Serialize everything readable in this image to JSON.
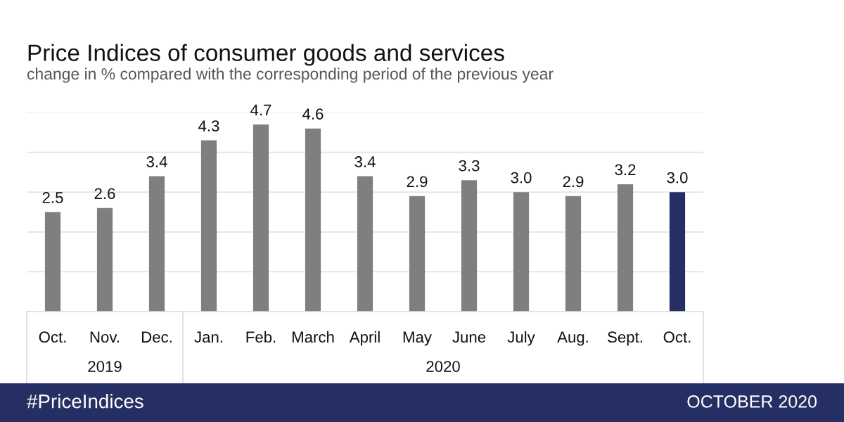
{
  "chart_data": {
    "type": "bar",
    "title": "Price Indices of consumer goods and services",
    "subtitle": "change in % compared with the corresponding period of the previous year",
    "categories": [
      "Oct.",
      "Nov.",
      "Dec.",
      "Jan.",
      "Feb.",
      "March",
      "April",
      "May",
      "June",
      "July",
      "Aug.",
      "Sept.",
      "Oct."
    ],
    "values": [
      2.5,
      2.6,
      3.4,
      4.3,
      4.7,
      4.6,
      3.4,
      2.9,
      3.3,
      3.0,
      2.9,
      3.2,
      3.0
    ],
    "value_labels": [
      "2.5",
      "2.6",
      "3.4",
      "4.3",
      "4.7",
      "4.6",
      "3.4",
      "2.9",
      "3.3",
      "3.0",
      "2.9",
      "3.2",
      "3.0"
    ],
    "colors": [
      "#7f7f7f",
      "#7f7f7f",
      "#7f7f7f",
      "#7f7f7f",
      "#7f7f7f",
      "#7f7f7f",
      "#7f7f7f",
      "#7f7f7f",
      "#7f7f7f",
      "#7f7f7f",
      "#7f7f7f",
      "#7f7f7f",
      "#262f63"
    ],
    "ylim": [
      0,
      5
    ],
    "yticks": [
      {
        "value": 0,
        "label": null
      },
      {
        "value": 1,
        "label": null
      },
      {
        "value": 2,
        "label": null
      },
      {
        "value": 3,
        "label": null
      },
      {
        "value": 4,
        "label": null
      },
      {
        "value": 5,
        "label": null
      }
    ],
    "grid": "y",
    "tick_labels": "x",
    "annotations": [
      "2019",
      "2020",
      "#PriceIndices",
      "OCTOBER 2020"
    ]
  }
}
